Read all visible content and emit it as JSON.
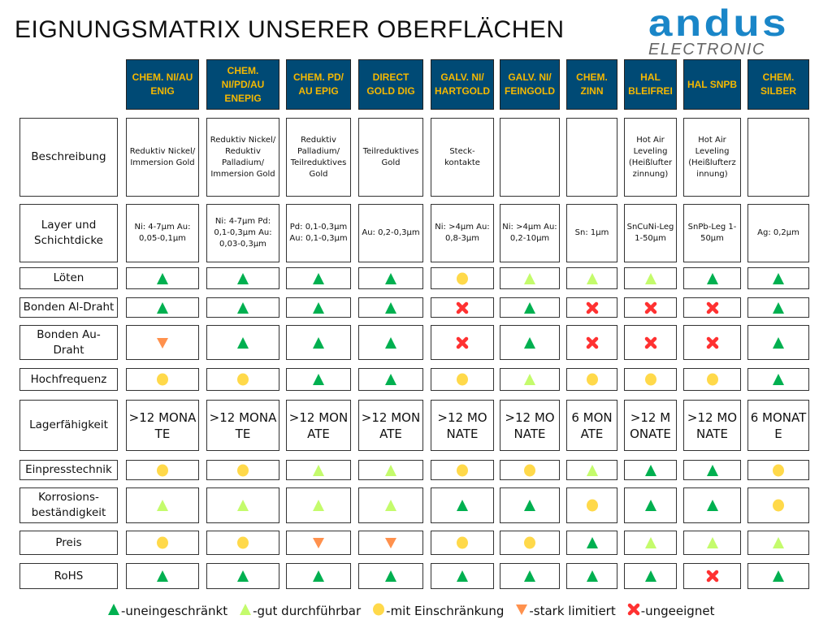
{
  "title": "EIGNUNGSMATRIX UNSERER OBERFLÄCHEN",
  "logo": {
    "brand": "andus",
    "sub": "ELECTRONIC",
    "color": "#1a86c8"
  },
  "colors": {
    "header_bg": "#004a75",
    "header_text": "#f5b800",
    "A": "#00b050",
    "L": "#c4fb6c",
    "Y": "#ffd94a",
    "O": "#ff914d",
    "X": "#ff3131"
  },
  "columns": [
    "CHEM. NI/AU ENIG",
    "CHEM. NI/PD/AU ENEPIG",
    "CHEM. PD/ AU EPIG",
    "DIRECT GOLD DIG",
    "GALV. NI/ HARTGOLD",
    "GALV. NI/ FEINGOLD",
    "CHEM. ZINN",
    "HAL BLEIFREI",
    "HAL SNPB",
    "CHEM. SILBER"
  ],
  "rows": [
    {
      "label": "Beschreibung",
      "kind": "text",
      "values": [
        "Reduktiv Nickel/ Immersion Gold",
        "Reduktiv Nickel/ Reduktiv Palladium/ Immersion Gold",
        "Reduktiv Palladium/ Teilreduktives Gold",
        "Teilreduktives Gold",
        "Steck- kontakte",
        "",
        "",
        "Hot Air Leveling (Heißlufter zinnung)",
        "Hot Air Leveling (Heißlufterz innung)",
        ""
      ]
    },
    {
      "label": "Layer und Schichtdicke",
      "kind": "text",
      "values": [
        "Ni: 4-7µm Au: 0,05-0,1µm",
        "Ni: 4-7µm Pd: 0,1-0,3µm Au: 0,03-0,3µm",
        "Pd: 0,1-0,3µm Au: 0,1-0,3µm",
        "Au: 0,2-0,3µm",
        "Ni: >4µm Au: 0,8-3µm",
        "Ni: >4µm Au: 0,2-10µm",
        "Sn: 1µm",
        "SnCuNi-Leg 1-50µm",
        "SnPb-Leg 1-50µm",
        "Ag: 0,2µm"
      ]
    },
    {
      "label": "Löten",
      "kind": "sym",
      "values": [
        "A",
        "A",
        "A",
        "A",
        "Y",
        "L",
        "L",
        "L",
        "A",
        "A"
      ]
    },
    {
      "label": "Bonden Al-Draht",
      "kind": "sym",
      "values": [
        "A",
        "A",
        "A",
        "A",
        "X",
        "A",
        "X",
        "X",
        "X",
        "A"
      ]
    },
    {
      "label": "Bonden Au-Draht",
      "kind": "sym",
      "values": [
        "O",
        "A",
        "A",
        "A",
        "X",
        "A",
        "X",
        "X",
        "X",
        "A"
      ]
    },
    {
      "label": "Hochfrequenz",
      "kind": "sym",
      "values": [
        "Y",
        "Y",
        "A",
        "A",
        "Y",
        "L",
        "Y",
        "Y",
        "Y",
        "A"
      ]
    },
    {
      "label": "Lagerfähigkeit",
      "kind": "big",
      "values": [
        ">12 MONATE",
        ">12 MONATE",
        ">12 MONATE",
        ">12 MONATE",
        ">12 MONATE",
        ">12 MONATE",
        "6 MONATE",
        ">12 MONATE",
        ">12 MONATE",
        "6 MONATE"
      ]
    },
    {
      "label": "Einpresstechnik",
      "kind": "sym",
      "values": [
        "Y",
        "Y",
        "L",
        "L",
        "Y",
        "Y",
        "L",
        "A",
        "A",
        "Y"
      ]
    },
    {
      "label": "Korrosions-beständigkeit",
      "kind": "sym",
      "values": [
        "L",
        "L",
        "L",
        "L",
        "A",
        "A",
        "Y",
        "A",
        "A",
        "Y"
      ]
    },
    {
      "label": "Preis",
      "kind": "sym",
      "values": [
        "Y",
        "Y",
        "O",
        "O",
        "Y",
        "Y",
        "A",
        "L",
        "L",
        "L"
      ]
    },
    {
      "label": "RoHS",
      "kind": "sym",
      "values": [
        "A",
        "A",
        "A",
        "A",
        "A",
        "A",
        "A",
        "A",
        "X",
        "A"
      ]
    }
  ],
  "legend": [
    {
      "symbol": "A",
      "icon": "dark-green-triangle-up",
      "label": "-uneingeschränkt"
    },
    {
      "symbol": "L",
      "icon": "light-green-triangle-up",
      "label": "-gut durchführbar"
    },
    {
      "symbol": "Y",
      "icon": "yellow-circle",
      "label": "-mit Einschränkung"
    },
    {
      "symbol": "O",
      "icon": "orange-triangle-down",
      "label": "-stark limitiert"
    },
    {
      "symbol": "X",
      "icon": "red-cross",
      "label": "-ungeeignet"
    }
  ]
}
